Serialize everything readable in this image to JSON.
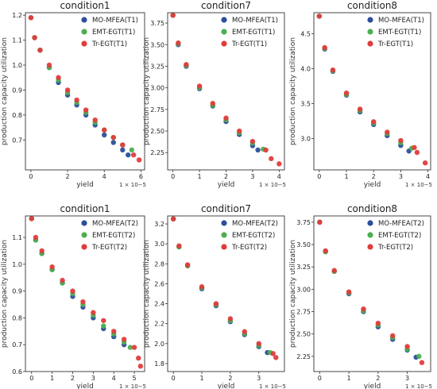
{
  "figure": {
    "series_colors": {
      "MO-MFEA": "#2c4f9a",
      "EMT-EGT": "#4caf50",
      "Tr-EGT": "#e03c3c"
    },
    "grid": false,
    "legend_placement": "top-right"
  },
  "chart_data": [
    {
      "type": "scatter",
      "title": "condition1",
      "xlabel": "yield",
      "ylabel": "production capacity utilization",
      "x_multiplier": "1 × 10−5",
      "xlim": [
        -0.3,
        6.2
      ],
      "ylim": [
        0.58,
        1.21
      ],
      "xticks": [
        "0",
        "2",
        "4",
        "6"
      ],
      "xtick_values": [
        0,
        2,
        4,
        6
      ],
      "yticks": [
        "0.7",
        "0.8",
        "0.9",
        "1.0",
        "1.1",
        "1.2"
      ],
      "ytick_values": [
        0.7,
        0.8,
        0.9,
        1.0,
        1.1,
        1.2
      ],
      "series": [
        {
          "name": "MO-MFEA(T1)",
          "color": "#2c4f9a",
          "x": [
            0,
            0.2,
            0.5,
            1,
            1.5,
            2,
            2.5,
            3,
            3.5,
            4,
            4.5,
            5.0,
            5.3
          ],
          "y": [
            1.19,
            1.11,
            1.06,
            0.99,
            0.93,
            0.88,
            0.84,
            0.8,
            0.76,
            0.72,
            0.69,
            0.66,
            0.64
          ]
        },
        {
          "name": "EMT-EGT(T1)",
          "color": "#4caf50",
          "x": [
            0,
            0.2,
            0.5,
            1,
            1.5,
            2,
            2.5,
            3,
            3.5,
            4,
            4.5,
            5.0,
            5.5
          ],
          "y": [
            1.19,
            1.11,
            1.06,
            0.99,
            0.94,
            0.89,
            0.85,
            0.81,
            0.77,
            0.74,
            0.71,
            0.68,
            0.66
          ]
        },
        {
          "name": "Tr-EGT(T1)",
          "color": "#e03c3c",
          "x": [
            0,
            0.2,
            0.5,
            1,
            1.5,
            2,
            2.5,
            3,
            3.5,
            4,
            4.5,
            5.0,
            5.6,
            5.9
          ],
          "y": [
            1.19,
            1.11,
            1.06,
            1.0,
            0.95,
            0.9,
            0.86,
            0.82,
            0.78,
            0.74,
            0.71,
            0.68,
            0.64,
            0.62
          ]
        }
      ]
    },
    {
      "type": "scatter",
      "title": "condition7",
      "xlabel": "yield",
      "ylabel": "production capacity utilization",
      "x_multiplier": "1 × 10−5",
      "xlim": [
        -0.2,
        4.2
      ],
      "ylim": [
        2.05,
        3.87
      ],
      "xticks": [
        "0",
        "1",
        "2",
        "3",
        "4"
      ],
      "xtick_values": [
        0,
        1,
        2,
        3,
        4
      ],
      "yticks": [
        "2.25",
        "2.50",
        "2.75",
        "3.00",
        "3.25",
        "3.50",
        "3.75"
      ],
      "ytick_values": [
        2.25,
        2.5,
        2.75,
        3.0,
        3.25,
        3.5,
        3.75
      ],
      "series": [
        {
          "name": "MO-MFEA(T1)",
          "color": "#2c4f9a",
          "x": [
            0,
            0.2,
            0.5,
            1,
            1.5,
            2,
            2.5,
            3,
            3.2
          ],
          "y": [
            3.84,
            3.5,
            3.25,
            2.99,
            2.79,
            2.61,
            2.46,
            2.33,
            2.28
          ]
        },
        {
          "name": "EMT-EGT(T1)",
          "color": "#4caf50",
          "x": [
            0,
            0.2,
            0.5,
            1,
            1.5,
            2,
            2.5,
            3,
            3.4
          ],
          "y": [
            3.84,
            3.51,
            3.26,
            3.0,
            2.8,
            2.63,
            2.48,
            2.36,
            2.29
          ]
        },
        {
          "name": "Tr-EGT(T1)",
          "color": "#e03c3c",
          "x": [
            0,
            0.2,
            0.5,
            1,
            1.5,
            2,
            2.5,
            3,
            3.5,
            3.7,
            4.0
          ],
          "y": [
            3.84,
            3.52,
            3.27,
            3.02,
            2.82,
            2.65,
            2.5,
            2.38,
            2.28,
            2.18,
            2.12
          ]
        }
      ]
    },
    {
      "type": "scatter",
      "title": "condition8",
      "xlabel": "yield",
      "ylabel": "production capacity utilization",
      "x_multiplier": "1 × 10−5",
      "xlim": [
        -0.2,
        4.1
      ],
      "ylim": [
        2.55,
        4.8
      ],
      "xticks": [
        "0",
        "1",
        "2",
        "3",
        "4"
      ],
      "xtick_values": [
        0,
        1,
        2,
        3,
        4
      ],
      "yticks": [
        "3.0",
        "3.5",
        "4.0",
        "4.5"
      ],
      "ytick_values": [
        3.0,
        3.5,
        4.0,
        4.5
      ],
      "series": [
        {
          "name": "MO-MFEA(T1)",
          "color": "#2c4f9a",
          "x": [
            0,
            0.2,
            0.5,
            1,
            1.5,
            2,
            2.5,
            3,
            3.3
          ],
          "y": [
            4.75,
            4.28,
            3.96,
            3.62,
            3.38,
            3.2,
            3.04,
            2.9,
            2.82
          ]
        },
        {
          "name": "EMT-EGT(T1)",
          "color": "#4caf50",
          "x": [
            0,
            0.2,
            0.5,
            1,
            1.5,
            2,
            2.5,
            3,
            3.4
          ],
          "y": [
            4.75,
            4.29,
            3.97,
            3.63,
            3.4,
            3.22,
            3.07,
            2.94,
            2.86
          ]
        },
        {
          "name": "Tr-EGT(T1)",
          "color": "#e03c3c",
          "x": [
            0,
            0.2,
            0.5,
            1,
            1.5,
            2,
            2.5,
            3,
            3.5,
            3.6,
            3.9
          ],
          "y": [
            4.75,
            4.3,
            3.98,
            3.65,
            3.42,
            3.24,
            3.09,
            2.97,
            2.87,
            2.8,
            2.65
          ]
        }
      ]
    },
    {
      "type": "scatter",
      "title": "condition1",
      "xlabel": "yield",
      "ylabel": "production capacity utilization",
      "x_multiplier": "1 × 10−5",
      "xlim": [
        -0.3,
        5.5
      ],
      "ylim": [
        0.6,
        1.18
      ],
      "xticks": [
        "0",
        "1",
        "2",
        "3",
        "4",
        "5"
      ],
      "xtick_values": [
        0,
        1,
        2,
        3,
        4,
        5
      ],
      "yticks": [
        "0.6",
        "0.7",
        "0.8",
        "0.9",
        "1.0",
        "1.1"
      ],
      "ytick_values": [
        0.6,
        0.7,
        0.8,
        0.9,
        1.0,
        1.1
      ],
      "series": [
        {
          "name": "MO-MFEA(T2)",
          "color": "#2c4f9a",
          "x": [
            0,
            0.2,
            0.5,
            1,
            1.5,
            2,
            2.5,
            3,
            3.5,
            4,
            4.5
          ],
          "y": [
            1.17,
            1.09,
            1.04,
            0.98,
            0.93,
            0.88,
            0.84,
            0.8,
            0.76,
            0.73,
            0.7
          ]
        },
        {
          "name": "EMT-EGT(T2)",
          "color": "#4caf50",
          "x": [
            0,
            0.2,
            0.5,
            1,
            1.5,
            2,
            2.5,
            3,
            3.5,
            4,
            4.5,
            4.8
          ],
          "y": [
            1.17,
            1.09,
            1.04,
            0.98,
            0.93,
            0.89,
            0.85,
            0.81,
            0.77,
            0.74,
            0.71,
            0.69
          ]
        },
        {
          "name": "Tr-EGT(T2)",
          "color": "#e03c3c",
          "x": [
            0,
            0.2,
            0.5,
            1,
            1.5,
            2,
            2.5,
            3,
            3.5,
            4,
            4.5,
            5.0,
            5.2,
            5.3
          ],
          "y": [
            1.17,
            1.1,
            1.05,
            0.99,
            0.94,
            0.9,
            0.86,
            0.82,
            0.79,
            0.75,
            0.72,
            0.69,
            0.65,
            0.62
          ]
        }
      ]
    },
    {
      "type": "scatter",
      "title": "condition7",
      "xlabel": "yield",
      "ylabel": "production capacity utilization",
      "x_multiplier": "1 × 10−5",
      "xlim": [
        -0.2,
        3.9
      ],
      "ylim": [
        1.72,
        3.28
      ],
      "xticks": [
        "0",
        "1",
        "2",
        "3"
      ],
      "xtick_values": [
        0,
        1,
        2,
        3
      ],
      "yticks": [
        "1.8",
        "2.0",
        "2.2",
        "2.4",
        "2.6",
        "2.8",
        "3.0",
        "3.2"
      ],
      "ytick_values": [
        1.8,
        2.0,
        2.2,
        2.4,
        2.6,
        2.8,
        3.0,
        3.2
      ],
      "series": [
        {
          "name": "MO-MFEA(T2)",
          "color": "#2c4f9a",
          "x": [
            0,
            0.2,
            0.5,
            1,
            1.5,
            2,
            2.5,
            3,
            3.3
          ],
          "y": [
            3.25,
            2.97,
            2.78,
            2.55,
            2.38,
            2.22,
            2.09,
            1.97,
            1.91
          ]
        },
        {
          "name": "EMT-EGT(T2)",
          "color": "#4caf50",
          "x": [
            0,
            0.2,
            0.5,
            1,
            1.5,
            2,
            2.5,
            3,
            3.4
          ],
          "y": [
            3.25,
            2.97,
            2.78,
            2.56,
            2.39,
            2.23,
            2.1,
            1.98,
            1.91
          ]
        },
        {
          "name": "Tr-EGT(T2)",
          "color": "#e03c3c",
          "x": [
            0,
            0.2,
            0.5,
            1,
            1.5,
            2,
            2.5,
            3,
            3.5,
            3.6
          ],
          "y": [
            3.25,
            2.98,
            2.79,
            2.57,
            2.4,
            2.25,
            2.12,
            2.0,
            1.9,
            1.86
          ]
        }
      ]
    },
    {
      "type": "scatter",
      "title": "condition8",
      "xlabel": "yield",
      "ylabel": "production capacity utilization",
      "x_multiplier": "1 × 10−5",
      "xlim": [
        -0.2,
        3.8
      ],
      "ylim": [
        2.08,
        3.82
      ],
      "xticks": [
        "0",
        "1",
        "2",
        "3"
      ],
      "xtick_values": [
        0,
        1,
        2,
        3
      ],
      "yticks": [
        "2.25",
        "2.50",
        "2.75",
        "3.00",
        "3.25",
        "3.50",
        "3.75"
      ],
      "ytick_values": [
        2.25,
        2.5,
        2.75,
        3.0,
        3.25,
        3.5,
        3.75
      ],
      "series": [
        {
          "name": "MO-MFEA(T2)",
          "color": "#2c4f9a",
          "x": [
            0,
            0.2,
            0.5,
            1,
            1.5,
            2,
            2.5,
            3,
            3.3
          ],
          "y": [
            3.75,
            3.42,
            3.2,
            2.95,
            2.75,
            2.58,
            2.44,
            2.32,
            2.24
          ]
        },
        {
          "name": "EMT-EGT(T2)",
          "color": "#4caf50",
          "x": [
            0,
            0.2,
            0.5,
            1,
            1.5,
            2,
            2.5,
            3,
            3.4
          ],
          "y": [
            3.75,
            3.42,
            3.2,
            2.96,
            2.76,
            2.6,
            2.46,
            2.33,
            2.25
          ]
        },
        {
          "name": "Tr-EGT(T2)",
          "color": "#e03c3c",
          "x": [
            0,
            0.2,
            0.5,
            1,
            1.5,
            2,
            2.5,
            3,
            3.5
          ],
          "y": [
            3.75,
            3.43,
            3.21,
            2.97,
            2.78,
            2.62,
            2.48,
            2.36,
            2.18
          ]
        }
      ]
    }
  ]
}
